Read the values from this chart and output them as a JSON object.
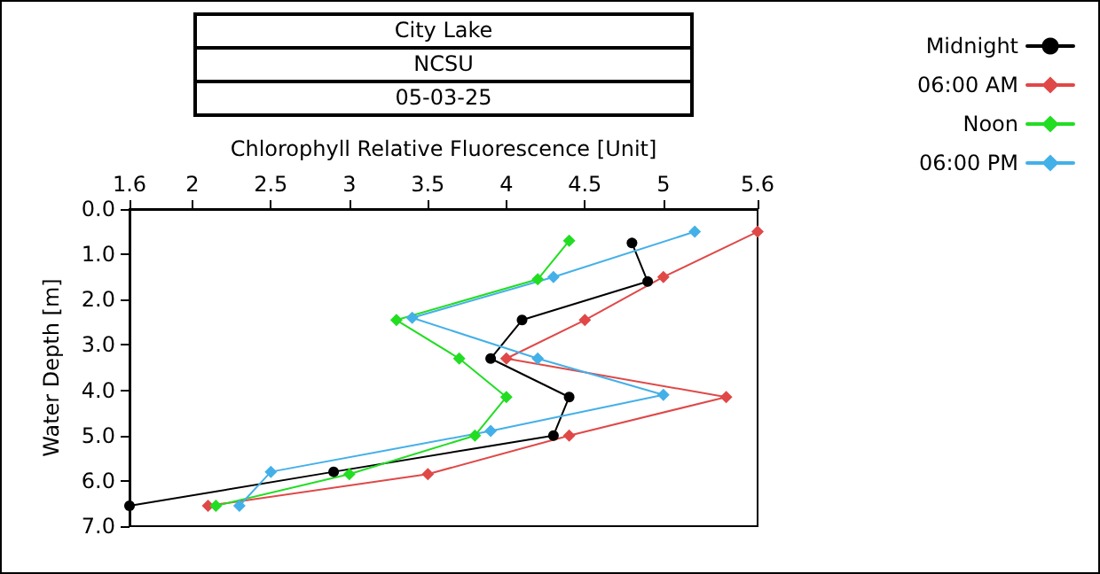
{
  "chart_data": {
    "type": "line",
    "title": "City Lake",
    "subtitle": "NCSU",
    "annotations": [
      "05-03-25"
    ],
    "xlabel": "Chlorophyll Relative Fluorescence [Unit]",
    "ylabel": "Water Depth [m]",
    "xlim": [
      1.6,
      5.6
    ],
    "xticks": [
      1.6,
      2,
      2.5,
      3,
      3.5,
      4,
      4.5,
      5,
      5.6
    ],
    "ylim": [
      7,
      0
    ],
    "yticks": [
      {
        "value": 0,
        "label": "0.0"
      },
      {
        "value": 1,
        "label": "1.0"
      },
      {
        "value": 2,
        "label": "2.0"
      },
      {
        "value": 3,
        "label": "3.0"
      },
      {
        "value": 4,
        "label": "4.0"
      },
      {
        "value": 5,
        "label": "5.0"
      },
      {
        "value": 6,
        "label": "6.0"
      },
      {
        "value": 7,
        "label": "7.0"
      }
    ],
    "grid": false,
    "legend": "top right",
    "line_style": "solid",
    "series": [
      {
        "name": "Midnight",
        "color": "#000000",
        "marker": "circle",
        "x": [
          4.8,
          4.9,
          4.1,
          3.9,
          4.4,
          4.3,
          2.9,
          1.6
        ],
        "values": [
          0.75,
          1.6,
          2.45,
          3.3,
          4.15,
          5.0,
          5.8,
          6.55
        ]
      },
      {
        "name": "06:00 AM",
        "color": "#e04848",
        "marker": "diamond",
        "x": [
          5.6,
          5.0,
          4.5,
          4.0,
          5.4,
          4.4,
          3.5,
          2.1
        ],
        "values": [
          0.5,
          1.5,
          2.45,
          3.3,
          4.15,
          5.0,
          5.85,
          6.55
        ]
      },
      {
        "name": "Noon",
        "color": "#22dd22",
        "marker": "diamond",
        "x": [
          4.4,
          4.2,
          3.3,
          3.7,
          4.0,
          3.8,
          3.0,
          2.15
        ],
        "values": [
          0.7,
          1.55,
          2.45,
          3.3,
          4.15,
          5.0,
          5.85,
          6.55
        ]
      },
      {
        "name": "06:00 PM",
        "color": "#44b0e8",
        "marker": "diamond",
        "x": [
          5.2,
          4.3,
          3.4,
          4.2,
          5.0,
          3.9,
          2.5,
          2.3
        ],
        "values": [
          0.5,
          1.5,
          2.4,
          3.3,
          4.1,
          4.9,
          5.8,
          6.55
        ]
      }
    ]
  }
}
